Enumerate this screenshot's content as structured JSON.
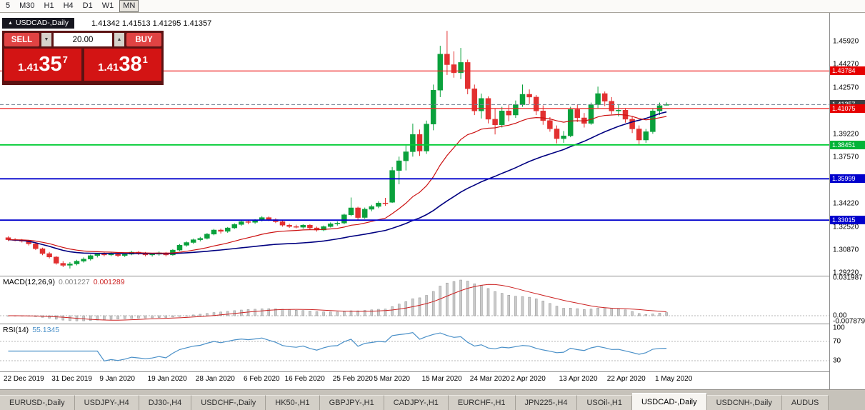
{
  "toolbar": {
    "timeframes": [
      {
        "label": "5",
        "active": false
      },
      {
        "label": "M30",
        "active": false
      },
      {
        "label": "H1",
        "active": false
      },
      {
        "label": "H4",
        "active": false
      },
      {
        "label": "D1",
        "active": false
      },
      {
        "label": "W1",
        "active": false
      },
      {
        "label": "MN",
        "active": true
      }
    ]
  },
  "symbol_header": {
    "marker": "▲",
    "symbol": "USDCAD-,Daily",
    "ohlc": "1.41342 1.41513 1.41295 1.41357"
  },
  "trade_panel": {
    "sell_label": "SELL",
    "buy_label": "BUY",
    "volume": "20.00",
    "spin_down": "▼",
    "spin_up": "▲",
    "sell_price": {
      "prefix": "1.41",
      "big": "35",
      "pip": "7"
    },
    "buy_price": {
      "prefix": "1.41",
      "big": "38",
      "pip": "1"
    }
  },
  "price_axis": {
    "ticks": [
      "1.45920",
      "1.44270",
      "1.42570",
      "1.40920",
      "1.39220",
      "1.37570",
      "1.35870",
      "1.34220",
      "1.32520",
      "1.30870",
      "1.29220"
    ]
  },
  "hlines": [
    {
      "price": 1.43784,
      "label": "1.43784",
      "color": "#ee2222",
      "width": 1.2,
      "dash": false,
      "badge": "#e60000"
    },
    {
      "price": 1.41357,
      "label": "1.41357",
      "color": "#708090",
      "width": 1,
      "dash": true,
      "badge": "#3c4043"
    },
    {
      "price": 1.41075,
      "label": "1.41075",
      "color": "#ee2222",
      "width": 1.2,
      "dash": false,
      "badge": "#e60000"
    },
    {
      "price": 1.38451,
      "label": "1.38451",
      "color": "#00cc33",
      "width": 1.8,
      "dash": false,
      "badge": "#00b437"
    },
    {
      "price": 1.35999,
      "label": "1.35999",
      "color": "#0000cc",
      "width": 1.8,
      "dash": false,
      "badge": "#0000cc"
    },
    {
      "price": 1.33015,
      "label": "1.33015",
      "color": "#0000cc",
      "width": 1.8,
      "dash": false,
      "badge": "#0000cc"
    }
  ],
  "macd_panel": {
    "title": "MACD(12,26,9)",
    "main_value": "0.001227",
    "signal_value": "0.001289",
    "axis_max": "0.031987",
    "axis_zero": "0.00",
    "axis_min": "-0.007879"
  },
  "rsi_panel": {
    "title": "RSI(14)",
    "value": "55.1345",
    "levels": [
      100,
      70,
      30
    ]
  },
  "date_axis": [
    {
      "label": "22 Dec 2019",
      "i": 0
    },
    {
      "label": "31 Dec 2019",
      "i": 7
    },
    {
      "label": "9 Jan 2020",
      "i": 14
    },
    {
      "label": "19 Jan 2020",
      "i": 21
    },
    {
      "label": "28 Jan 2020",
      "i": 28
    },
    {
      "label": "6 Feb 2020",
      "i": 35
    },
    {
      "label": "16 Feb 2020",
      "i": 41
    },
    {
      "label": "25 Feb 2020",
      "i": 48
    },
    {
      "label": "5 Mar 2020",
      "i": 54
    },
    {
      "label": "15 Mar 2020",
      "i": 61
    },
    {
      "label": "24 Mar 2020",
      "i": 68
    },
    {
      "label": "2 Apr 2020",
      "i": 74
    },
    {
      "label": "13 Apr 2020",
      "i": 81
    },
    {
      "label": "22 Apr 2020",
      "i": 88
    },
    {
      "label": "1 May 2020",
      "i": 95
    }
  ],
  "tabs": [
    {
      "label": "EURUSD-,Daily",
      "active": false
    },
    {
      "label": "USDJPY-,H4",
      "active": false
    },
    {
      "label": "DJ30-,H4",
      "active": false
    },
    {
      "label": "USDCHF-,Daily",
      "active": false
    },
    {
      "label": "HK50-,H1",
      "active": false
    },
    {
      "label": "GBPJPY-,H1",
      "active": false
    },
    {
      "label": "CADJPY-,H1",
      "active": false
    },
    {
      "label": "EURCHF-,H1",
      "active": false
    },
    {
      "label": "JPN225-,H4",
      "active": false
    },
    {
      "label": "USOil-,H1",
      "active": false
    },
    {
      "label": "USDCAD-,Daily",
      "active": true
    },
    {
      "label": "USDCNH-,Daily",
      "active": false
    },
    {
      "label": "AUDUS",
      "active": false
    }
  ],
  "chart_data": {
    "type": "candlestick",
    "title": "USDCAD-,Daily",
    "current_bar": {
      "open": 1.41342,
      "high": 1.41513,
      "low": 1.41295,
      "close": 1.41357
    },
    "y_axis_ticks": [
      1.4592,
      1.4427,
      1.4257,
      1.4092,
      1.3922,
      1.3757,
      1.3587,
      1.3422,
      1.3252,
      1.3087,
      1.2922
    ],
    "y_range": [
      1.29,
      1.4798
    ],
    "x_labels": [
      "22 Dec 2019",
      "31 Dec 2019",
      "9 Jan 2020",
      "19 Jan 2020",
      "28 Jan 2020",
      "6 Feb 2020",
      "16 Feb 2020",
      "25 Feb 2020",
      "5 Mar 2020",
      "15 Mar 2020",
      "24 Mar 2020",
      "2 Apr 2020",
      "13 Apr 2020",
      "22 Apr 2020",
      "1 May 2020"
    ],
    "horizontal_levels": [
      1.43784,
      1.41357,
      1.41075,
      1.38451,
      1.35999,
      1.33015
    ],
    "overlays": [
      {
        "name": "ma-fast",
        "type": "ema",
        "period": 20,
        "color": "#cc1111"
      },
      {
        "name": "ma-slow",
        "type": "sma",
        "period": 40,
        "color": "#000080"
      }
    ],
    "indicators": [
      {
        "name": "MACD",
        "params": [
          12,
          26,
          9
        ],
        "display_values": [
          0.001227,
          0.001289
        ],
        "axis": [
          0.031987,
          0,
          -0.007879
        ]
      },
      {
        "name": "RSI",
        "params": [
          14
        ],
        "display_value": 55.1345,
        "levels": [
          100,
          70,
          30
        ]
      }
    ],
    "candles": [
      [
        1.3175,
        1.3185,
        1.315,
        1.316
      ],
      [
        1.316,
        1.3172,
        1.3148,
        1.3155
      ],
      [
        1.3155,
        1.3165,
        1.314,
        1.315
      ],
      [
        1.315,
        1.3158,
        1.3118,
        1.313
      ],
      [
        1.313,
        1.3138,
        1.3085,
        1.3095
      ],
      [
        1.3095,
        1.3102,
        1.3048,
        1.306
      ],
      [
        1.306,
        1.3072,
        1.3025,
        1.3035
      ],
      [
        1.3035,
        1.3042,
        1.298,
        1.299
      ],
      [
        1.299,
        1.3005,
        1.2962,
        1.2975
      ],
      [
        1.2975,
        1.2998,
        1.2952,
        1.2985
      ],
      [
        1.2985,
        1.3015,
        1.2975,
        1.3005
      ],
      [
        1.3005,
        1.3032,
        1.2995,
        1.302
      ],
      [
        1.302,
        1.3052,
        1.301,
        1.3045
      ],
      [
        1.3045,
        1.3065,
        1.3032,
        1.3055
      ],
      [
        1.3055,
        1.3068,
        1.304,
        1.305
      ],
      [
        1.305,
        1.307,
        1.3042,
        1.306
      ],
      [
        1.306,
        1.3068,
        1.3035,
        1.3045
      ],
      [
        1.3045,
        1.3062,
        1.3035,
        1.3055
      ],
      [
        1.3055,
        1.308,
        1.3048,
        1.307
      ],
      [
        1.307,
        1.3078,
        1.305,
        1.306
      ],
      [
        1.306,
        1.3072,
        1.304,
        1.305
      ],
      [
        1.305,
        1.3065,
        1.3038,
        1.3055
      ],
      [
        1.3055,
        1.3075,
        1.3045,
        1.3065
      ],
      [
        1.3065,
        1.3072,
        1.304,
        1.305
      ],
      [
        1.305,
        1.3092,
        1.3045,
        1.3085
      ],
      [
        1.3085,
        1.3128,
        1.3078,
        1.312
      ],
      [
        1.312,
        1.3148,
        1.311,
        1.314
      ],
      [
        1.314,
        1.3168,
        1.313,
        1.316
      ],
      [
        1.316,
        1.318,
        1.3148,
        1.317
      ],
      [
        1.317,
        1.3208,
        1.3162,
        1.32
      ],
      [
        1.32,
        1.3238,
        1.3192,
        1.323
      ],
      [
        1.323,
        1.324,
        1.3205,
        1.322
      ],
      [
        1.322,
        1.3252,
        1.321,
        1.3245
      ],
      [
        1.3245,
        1.3278,
        1.3238,
        1.327
      ],
      [
        1.327,
        1.3298,
        1.326,
        1.329
      ],
      [
        1.329,
        1.33,
        1.3272,
        1.3285
      ],
      [
        1.3285,
        1.3308,
        1.3275,
        1.33
      ],
      [
        1.33,
        1.333,
        1.3292,
        1.332
      ],
      [
        1.332,
        1.3328,
        1.3295,
        1.3305
      ],
      [
        1.3305,
        1.3315,
        1.328,
        1.329
      ],
      [
        1.329,
        1.3298,
        1.3255,
        1.3265
      ],
      [
        1.3265,
        1.3275,
        1.3245,
        1.3255
      ],
      [
        1.3255,
        1.3268,
        1.3242,
        1.325
      ],
      [
        1.325,
        1.3272,
        1.324,
        1.3265
      ],
      [
        1.3265,
        1.3272,
        1.3235,
        1.3245
      ],
      [
        1.3245,
        1.3255,
        1.3218,
        1.323
      ],
      [
        1.323,
        1.3262,
        1.3222,
        1.3255
      ],
      [
        1.3255,
        1.3285,
        1.3248,
        1.3275
      ],
      [
        1.3275,
        1.3292,
        1.3262,
        1.328
      ],
      [
        1.328,
        1.3348,
        1.3272,
        1.334
      ],
      [
        1.334,
        1.3465,
        1.333,
        1.339
      ],
      [
        1.339,
        1.3398,
        1.3305,
        1.332
      ],
      [
        1.332,
        1.3392,
        1.331,
        1.338
      ],
      [
        1.338,
        1.3412,
        1.3365,
        1.34
      ],
      [
        1.34,
        1.3438,
        1.3388,
        1.3425
      ],
      [
        1.3425,
        1.3462,
        1.3405,
        1.342
      ],
      [
        1.343,
        1.3685,
        1.3425,
        1.366
      ],
      [
        1.366,
        1.376,
        1.356,
        1.373
      ],
      [
        1.373,
        1.384,
        1.366,
        1.3795
      ],
      [
        1.3795,
        1.3998,
        1.376,
        1.392
      ],
      [
        1.392,
        1.3955,
        1.3765,
        1.38
      ],
      [
        1.38,
        1.402,
        1.378,
        1.3995
      ],
      [
        1.3995,
        1.428,
        1.395,
        1.424
      ],
      [
        1.424,
        1.456,
        1.419,
        1.45
      ],
      [
        1.45,
        1.4668,
        1.435,
        1.4424
      ],
      [
        1.4424,
        1.452,
        1.433,
        1.4365
      ],
      [
        1.4365,
        1.4545,
        1.432,
        1.444
      ],
      [
        1.444,
        1.446,
        1.421,
        1.425
      ],
      [
        1.425,
        1.428,
        1.406,
        1.409
      ],
      [
        1.409,
        1.4215,
        1.4035,
        1.418
      ],
      [
        1.418,
        1.4195,
        1.4,
        1.403
      ],
      [
        1.403,
        1.4105,
        1.392,
        1.399
      ],
      [
        1.399,
        1.412,
        1.397,
        1.409
      ],
      [
        1.409,
        1.4135,
        1.4015,
        1.406
      ],
      [
        1.406,
        1.4165,
        1.404,
        1.4135
      ],
      [
        1.4135,
        1.428,
        1.412,
        1.421
      ],
      [
        1.421,
        1.4245,
        1.414,
        1.419
      ],
      [
        1.419,
        1.4205,
        1.406,
        1.409
      ],
      [
        1.409,
        1.413,
        1.399,
        1.402
      ],
      [
        1.402,
        1.4045,
        1.394,
        1.396
      ],
      [
        1.396,
        1.3985,
        1.3855,
        1.389
      ],
      [
        1.389,
        1.3945,
        1.386,
        1.391
      ],
      [
        1.391,
        1.412,
        1.39,
        1.41
      ],
      [
        1.41,
        1.4135,
        1.401,
        1.404
      ],
      [
        1.404,
        1.4075,
        1.397,
        1.4
      ],
      [
        1.4,
        1.415,
        1.399,
        1.4135
      ],
      [
        1.4135,
        1.4265,
        1.411,
        1.4215
      ],
      [
        1.4215,
        1.423,
        1.4125,
        1.416
      ],
      [
        1.416,
        1.419,
        1.4065,
        1.409
      ],
      [
        1.409,
        1.4135,
        1.405,
        1.4095
      ],
      [
        1.4095,
        1.411,
        1.4005,
        1.403
      ],
      [
        1.403,
        1.405,
        1.393,
        1.396
      ],
      [
        1.396,
        1.3985,
        1.385,
        1.388
      ],
      [
        1.388,
        1.396,
        1.386,
        1.394
      ],
      [
        1.394,
        1.4105,
        1.3925,
        1.409
      ],
      [
        1.409,
        1.415,
        1.406,
        1.4128
      ],
      [
        1.41342,
        1.41513,
        1.41295,
        1.41357
      ]
    ]
  }
}
